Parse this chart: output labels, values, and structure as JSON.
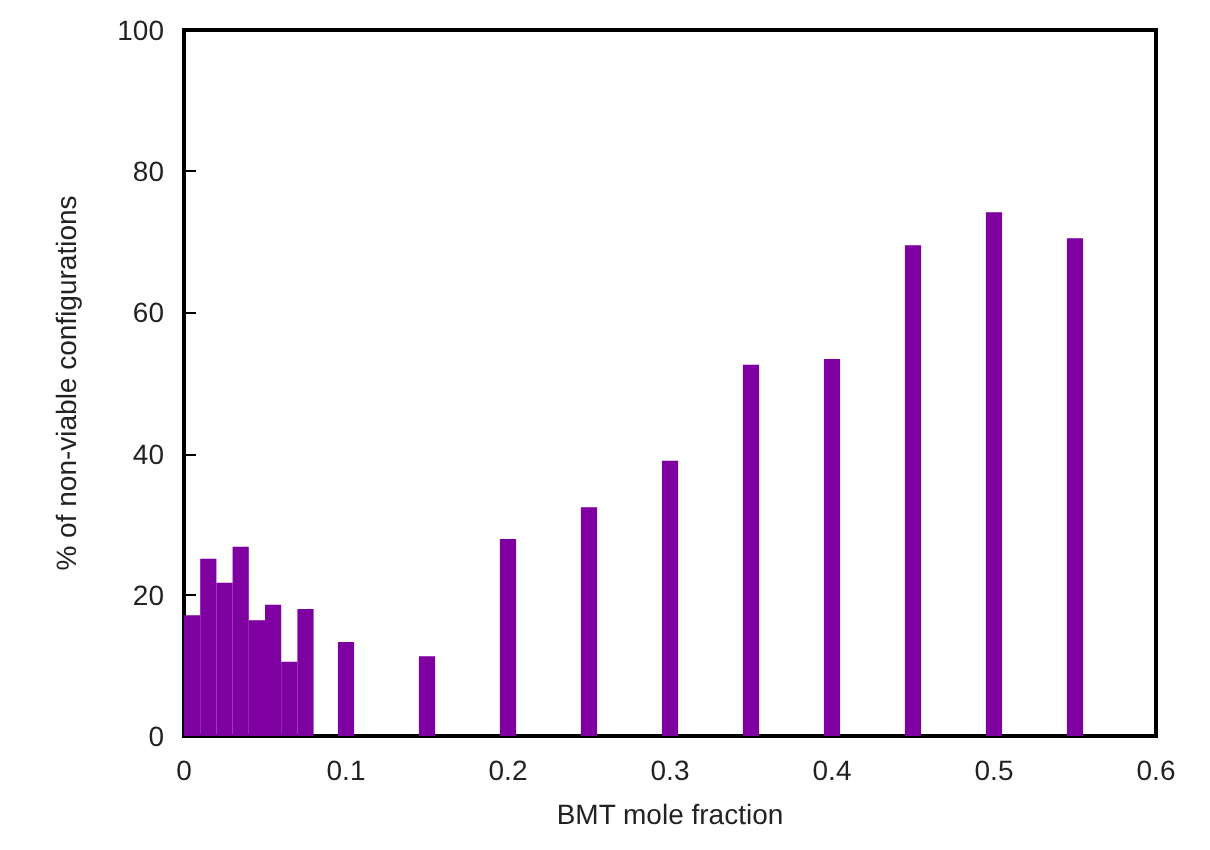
{
  "chart_data": {
    "type": "bar",
    "xlabel": "BMT mole fraction",
    "ylabel": "% of non-viable configurations",
    "x": [
      0.005,
      0.015,
      0.025,
      0.035,
      0.045,
      0.055,
      0.065,
      0.075,
      0.1,
      0.15,
      0.2,
      0.25,
      0.3,
      0.35,
      0.4,
      0.45,
      0.5,
      0.55
    ],
    "values": [
      17.1,
      25.1,
      21.7,
      26.8,
      16.4,
      18.6,
      10.5,
      18.0,
      13.3,
      11.3,
      27.9,
      32.4,
      39.0,
      52.6,
      53.4,
      69.5,
      74.2,
      70.5
    ],
    "color": "#7f00a0",
    "xlim": [
      0,
      0.6
    ],
    "xticks": [
      0,
      0.1,
      0.2,
      0.3,
      0.4,
      0.5,
      0.6
    ],
    "ylim": [
      0,
      100
    ],
    "yticks": [
      0,
      20,
      40,
      60,
      80,
      100
    ],
    "grid": false
  }
}
